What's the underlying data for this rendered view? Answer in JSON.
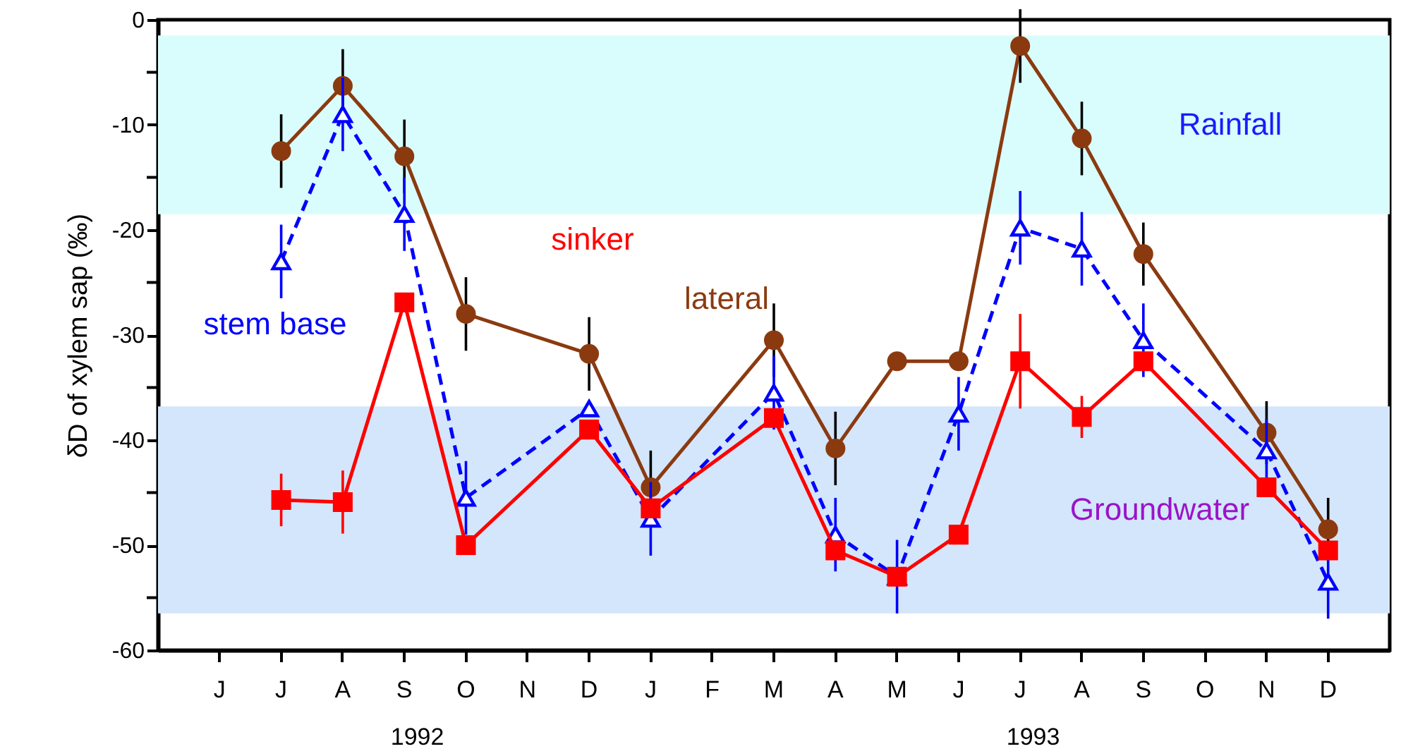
{
  "chart_data": {
    "type": "line",
    "ylabel": "δD of xylem sap (‰)",
    "categories": [
      "J",
      "J",
      "A",
      "S",
      "O",
      "N",
      "D",
      "J",
      "F",
      "M",
      "A",
      "M",
      "J",
      "J",
      "A",
      "S",
      "O",
      "N",
      "D"
    ],
    "series": [
      {
        "name": "lateral",
        "color": "#8b3a10",
        "marker": "circle",
        "line_style": "solid",
        "values": [
          null,
          -12.5,
          -6.3,
          -13,
          -28,
          null,
          -31.8,
          -44.5,
          null,
          -30.5,
          -40.8,
          -32.5,
          -32.5,
          -2.5,
          -11.3,
          -22.3,
          null,
          -39.3,
          -48.5
        ],
        "errors": [
          null,
          3.5,
          3.5,
          3.5,
          3.5,
          null,
          3.5,
          3.5,
          null,
          3.5,
          3.5,
          null,
          null,
          3.5,
          3.5,
          3,
          null,
          3,
          3
        ]
      },
      {
        "name": "stem base",
        "color": "#0000ff",
        "marker": "triangle",
        "line_style": "dashed",
        "values": [
          null,
          -23,
          -9,
          -18.5,
          -45.5,
          null,
          -37,
          -47.5,
          null,
          -35.5,
          -49,
          -53,
          -37.5,
          -19.8,
          -21.8,
          -30.5,
          null,
          -41,
          -53.5
        ],
        "errors": [
          null,
          3.5,
          3.5,
          3.5,
          3.5,
          null,
          null,
          3.5,
          null,
          3.5,
          3.5,
          3.5,
          3.5,
          3.5,
          3.5,
          3.5,
          null,
          3,
          3.5
        ]
      },
      {
        "name": "sinker",
        "color": "#ff0000",
        "marker": "square",
        "line_style": "solid",
        "values": [
          null,
          -45.7,
          -45.9,
          -26.9,
          -50,
          null,
          -39,
          -46.5,
          null,
          -37.9,
          -50.5,
          -53,
          -49,
          -32.5,
          -37.8,
          -32.5,
          null,
          -44.5,
          -50.5
        ],
        "errors": [
          null,
          2.5,
          3,
          null,
          null,
          null,
          null,
          null,
          null,
          null,
          null,
          null,
          null,
          4.5,
          2,
          null,
          null,
          null,
          null
        ]
      }
    ],
    "ylim": [
      -60,
      0
    ],
    "yticks": [
      -60,
      {
        "value": -55,
        "label": null
      },
      -50,
      {
        "value": -45,
        "label": null
      },
      -40,
      {
        "value": -35,
        "label": null
      },
      -30,
      {
        "value": -25,
        "label": null
      },
      -20,
      {
        "value": -15,
        "label": null
      },
      -10,
      {
        "value": -5,
        "label": null
      },
      0
    ],
    "bands": [
      {
        "axis": "y",
        "from": -18.5,
        "to": -1.5,
        "label": "Rainfall",
        "color": "#d9fdfd"
      },
      {
        "axis": "y",
        "from": -56.5,
        "to": -36.8,
        "label": "Groundwater",
        "color": "#d3e6fb"
      }
    ],
    "annotations": [
      "1992",
      "1993"
    ],
    "grid": false
  }
}
